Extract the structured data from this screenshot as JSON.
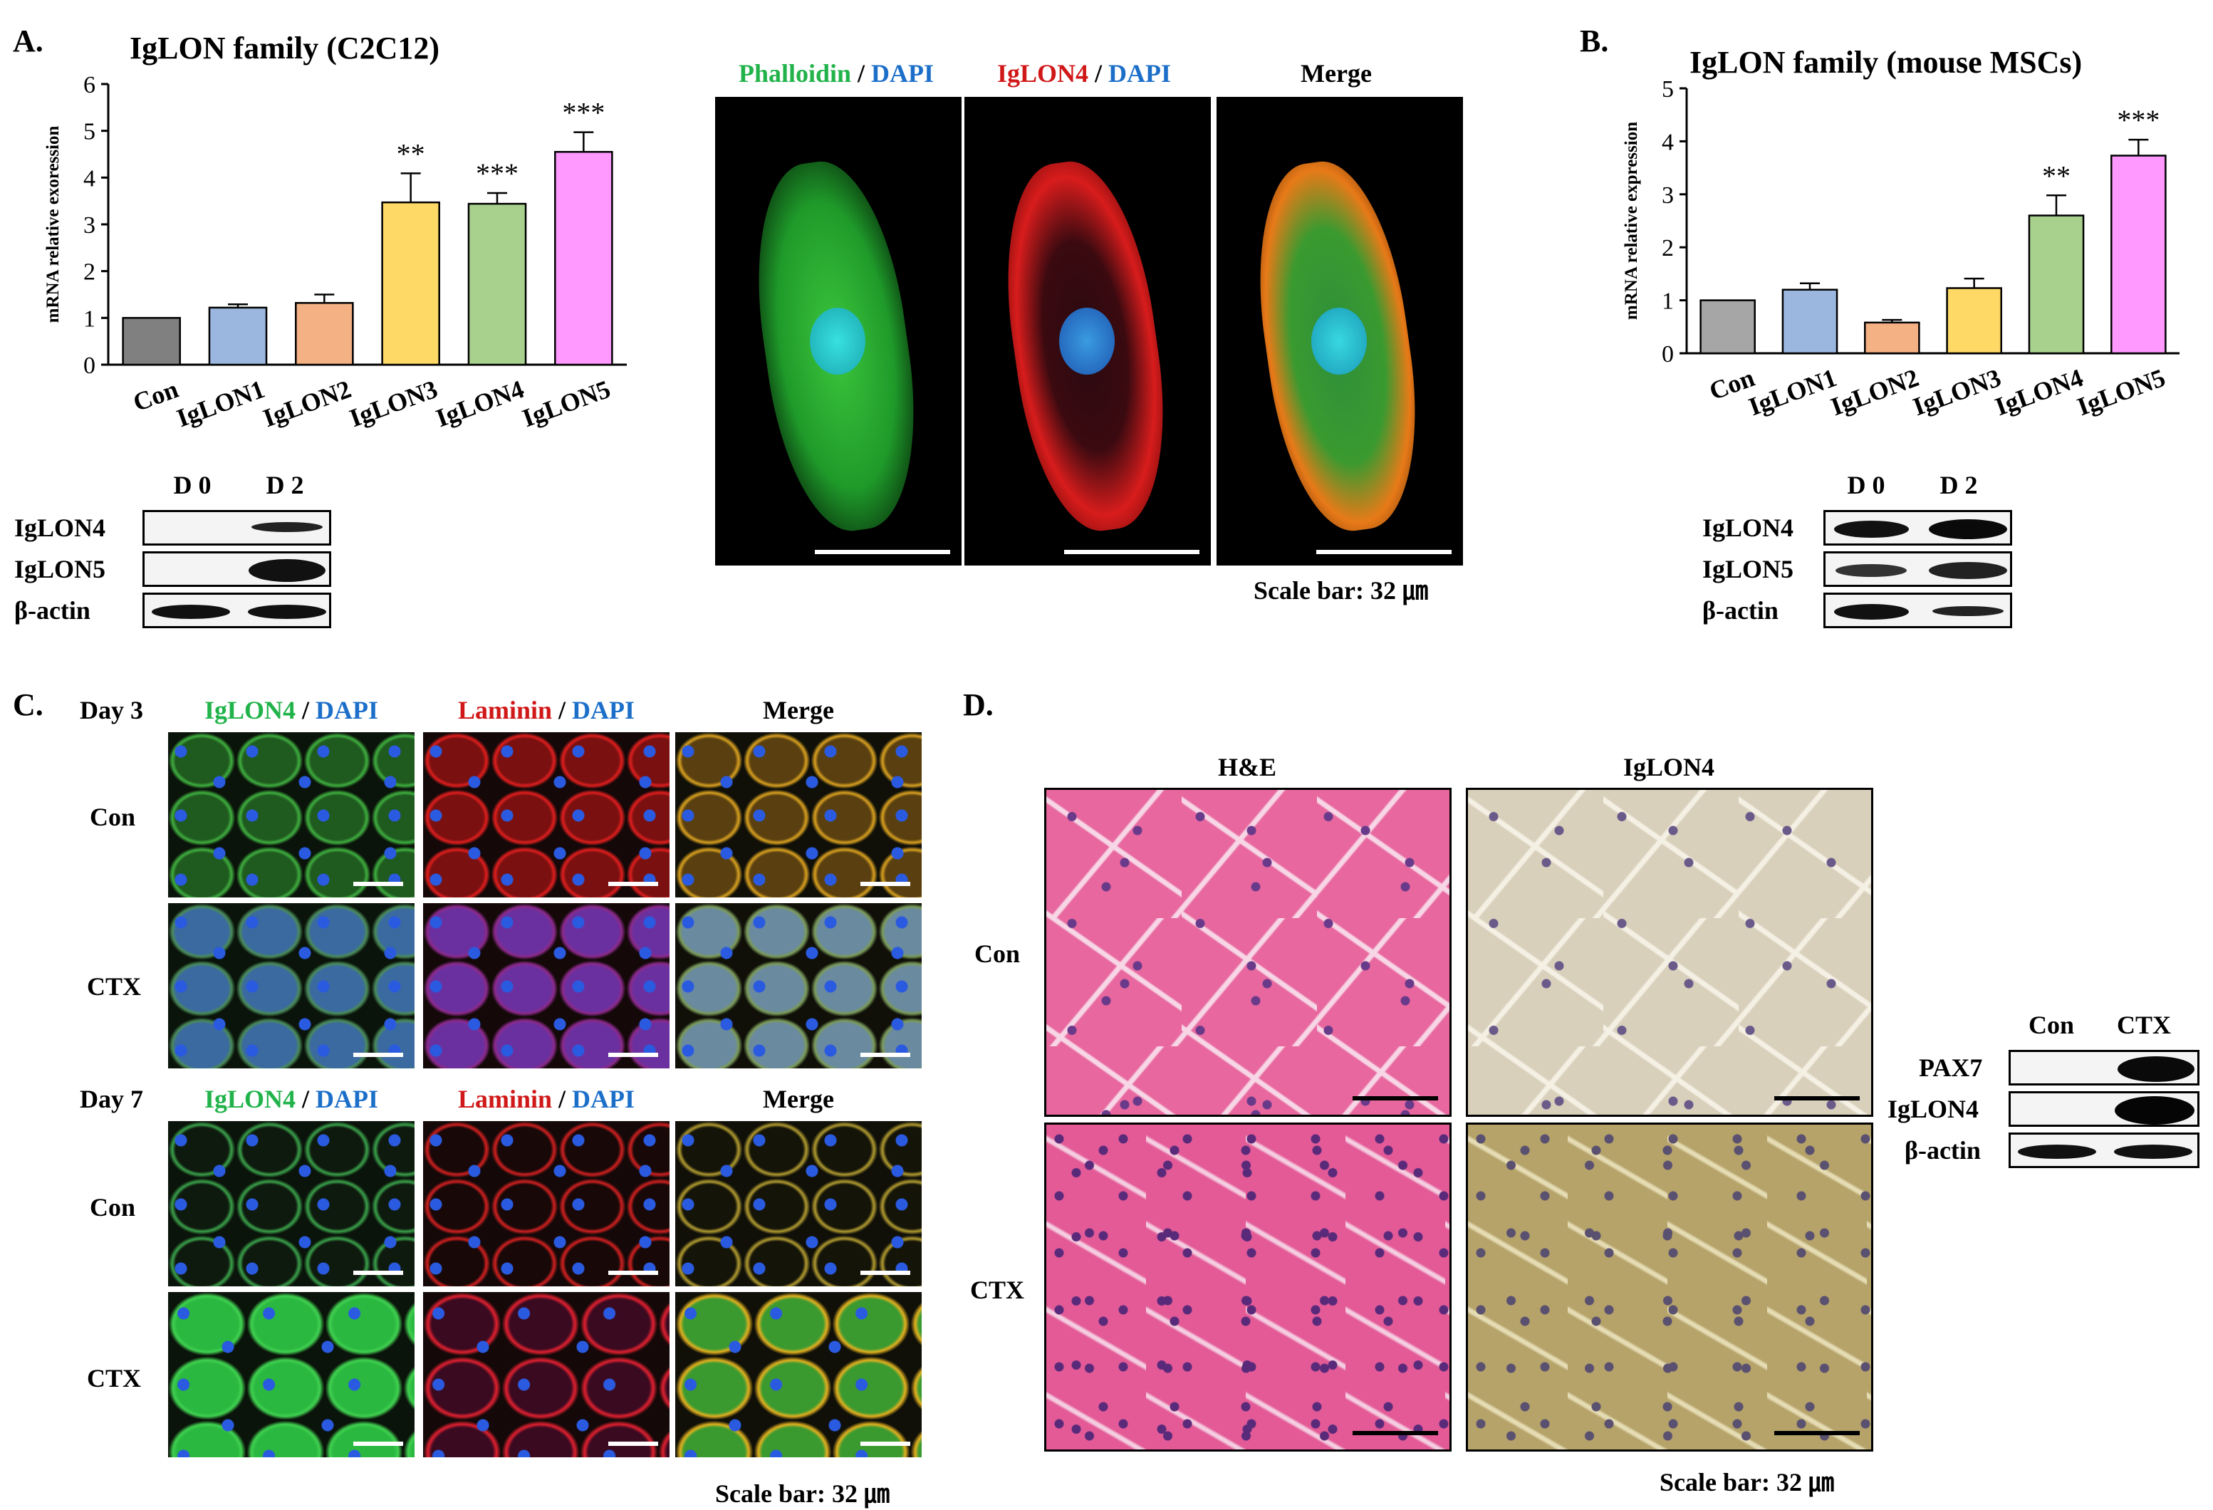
{
  "panel_labels": {
    "a": "A.",
    "b": "B.",
    "c": "C.",
    "d": "D."
  },
  "chart_data": [
    {
      "type": "bar",
      "title": "IgLON family (C2C12)",
      "ylabel": "mRNA relative exoression",
      "xlabel": "",
      "categories": [
        "Con",
        "IgLON1",
        "IgLON2",
        "IgLON3",
        "IgLON4",
        "IgLON5"
      ],
      "values": [
        1.0,
        1.22,
        1.32,
        3.47,
        3.44,
        4.55
      ],
      "errors": [
        0.0,
        0.07,
        0.18,
        0.62,
        0.23,
        0.42
      ],
      "significance": [
        "",
        "",
        "",
        "**",
        "***",
        "***"
      ],
      "yticks": [
        "0",
        "1",
        "2",
        "3",
        "4",
        "5",
        "6"
      ],
      "ylim": [
        0,
        6
      ],
      "colors": [
        "#808080",
        "#9bb7e0",
        "#f4b183",
        "#ffd966",
        "#a9d18e",
        "#ff99ff"
      ],
      "grid": false
    },
    {
      "type": "bar",
      "title": "IgLON family (mouse MSCs)",
      "ylabel": "mRNA relative expression",
      "xlabel": "",
      "categories": [
        "Con",
        "IgLON1",
        "IgLON2",
        "IgLON3",
        "IgLON4",
        "IgLON5"
      ],
      "values": [
        1.0,
        1.2,
        0.58,
        1.23,
        2.6,
        3.73
      ],
      "errors": [
        0.0,
        0.12,
        0.05,
        0.18,
        0.38,
        0.3
      ],
      "significance": [
        "",
        "",
        "",
        "",
        "**",
        "***"
      ],
      "yticks": [
        "0",
        "1",
        "2",
        "3",
        "4",
        "5"
      ],
      "ylim": [
        0,
        5
      ],
      "colors": [
        "#a6a6a6",
        "#9bb7e0",
        "#f4b183",
        "#ffd966",
        "#a9d18e",
        "#ff99ff"
      ],
      "grid": false
    }
  ],
  "blot_a": {
    "lanes": [
      "D 0",
      "D 2"
    ],
    "rows": [
      "IgLON4",
      "IgLON5",
      "β-actin"
    ]
  },
  "blot_b": {
    "lanes": [
      "D 0",
      "D 2"
    ],
    "rows": [
      "IgLON4",
      "IgLON5",
      "β-actin"
    ]
  },
  "blot_d": {
    "lanes": [
      "Con",
      "CTX"
    ],
    "rows": [
      "PAX7",
      "IgLON4",
      "β-actin"
    ]
  },
  "if_a": {
    "h1a": "Phalloidin",
    "h1b": "DAPI",
    "h2a": "IgLON4",
    "h2b": "DAPI",
    "h3": "Merge",
    "slash": " / ",
    "scale": "Scale bar: 32 ㎛"
  },
  "panel_c": {
    "day3": "Day 3",
    "day7": "Day 7",
    "h1a": "IgLON4",
    "h1b": "DAPI",
    "h2a": "Laminin",
    "h2b": "DAPI",
    "h3": "Merge",
    "slash": " / ",
    "con": "Con",
    "ctx": "CTX",
    "scale": "Scale bar: 32 ㎛"
  },
  "panel_d": {
    "h1": "H&E",
    "h2": "IgLON4",
    "con": "Con",
    "ctx": "CTX",
    "scale": "Scale bar: 32 ㎛"
  }
}
